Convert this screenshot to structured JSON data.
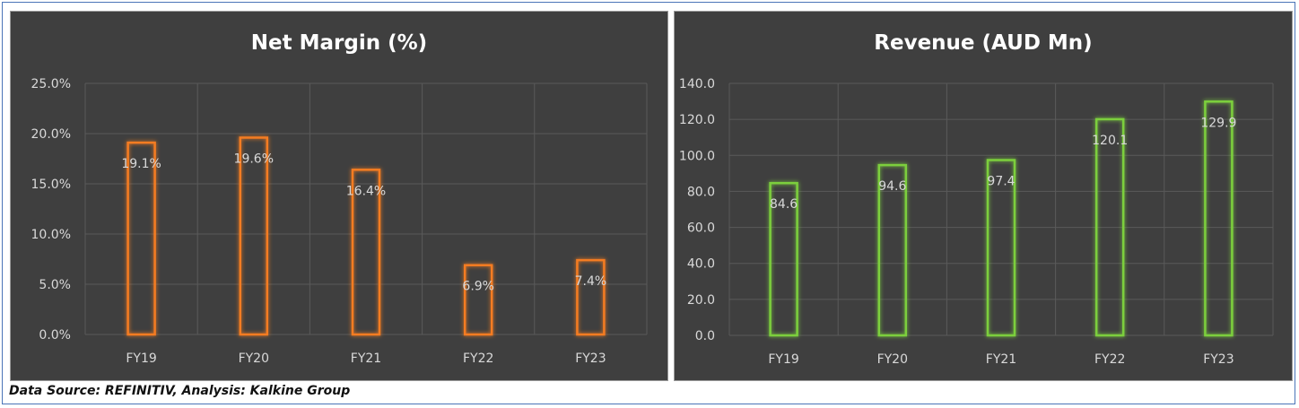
{
  "footer": {
    "source": "Data Source: REFINITIV, Analysis: Kalkine Group"
  },
  "colors": {
    "panel_bg": "#3f3f3f",
    "grid": "#5a5a5a",
    "text": "#d9d9d9",
    "margin_bar": "#f47c20",
    "revenue_bar": "#7ccf3c"
  },
  "chart_data": [
    {
      "type": "bar",
      "title": "Net Margin (%)",
      "categories": [
        "FY19",
        "FY20",
        "FY21",
        "FY22",
        "FY23"
      ],
      "values": [
        19.1,
        19.6,
        16.4,
        6.9,
        7.4
      ],
      "labels": [
        "19.1%",
        "19.6%",
        "16.4%",
        "6.9%",
        "7.4%"
      ],
      "yticks": [
        "0.0%",
        "5.0%",
        "10.0%",
        "15.0%",
        "20.0%",
        "25.0%"
      ],
      "ylim": [
        0,
        25
      ],
      "grid": true,
      "color": "#f47c20"
    },
    {
      "type": "bar",
      "title": "Revenue (AUD Mn)",
      "categories": [
        "FY19",
        "FY20",
        "FY21",
        "FY22",
        "FY23"
      ],
      "values": [
        84.6,
        94.6,
        97.4,
        120.1,
        129.9
      ],
      "labels": [
        "84.6",
        "94.6",
        "97.4",
        "120.1",
        "129.9"
      ],
      "yticks": [
        "0.0",
        "20.0",
        "40.0",
        "60.0",
        "80.0",
        "100.0",
        "120.0",
        "140.0"
      ],
      "ylim": [
        0,
        140
      ],
      "grid": true,
      "color": "#7ccf3c"
    }
  ]
}
